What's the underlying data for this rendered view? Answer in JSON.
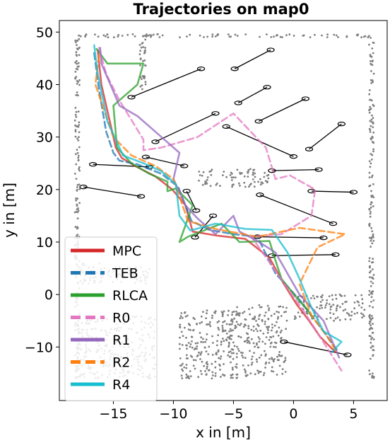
{
  "chart_data": {
    "type": "line",
    "title": "Trajectories on map0",
    "xlabel": "x in [m]",
    "ylabel": "y in [m]",
    "xlim": [
      -19.5,
      7.8
    ],
    "ylim": [
      -20.2,
      52.2
    ],
    "xticks": [
      -15,
      -10,
      -5,
      0,
      5
    ],
    "yticks": [
      -10,
      0,
      10,
      20,
      30,
      40,
      50
    ],
    "xtick_labels": [
      "−15",
      "−10",
      "−5",
      "0",
      "5"
    ],
    "ytick_labels": [
      "−10",
      "0",
      "10",
      "20",
      "30",
      "40",
      "50"
    ],
    "grid": false,
    "legend_position": "lower-left",
    "series": [
      {
        "name": "MPC",
        "color": "#d62728",
        "dash": "solid",
        "x": [
          -16.3,
          -16.0,
          -15.2,
          -14.8,
          -14.3,
          -13.2,
          -11.5,
          -10.1,
          -9.0,
          -8.4,
          -6.3,
          -4.0,
          -2.0,
          -0.8,
          0.3,
          1.3,
          2.2,
          3.5
        ],
        "y": [
          46.5,
          40.0,
          32.0,
          28.0,
          26.0,
          24.5,
          22.5,
          20.0,
          17.0,
          12.0,
          11.2,
          10.6,
          7.0,
          2.0,
          -2.0,
          -5.0,
          -8.0,
          -11.0
        ]
      },
      {
        "name": "TEB",
        "color": "#1f77b4",
        "dash": "dashed",
        "x": [
          -16.6,
          -16.2,
          -15.6,
          -15.0,
          -14.5,
          -13.0,
          -11.0,
          -9.6,
          -8.5,
          -7.0,
          -5.0,
          -3.0,
          -1.5,
          0.5,
          1.5,
          2.5,
          3.6
        ],
        "y": [
          46.0,
          39.0,
          31.0,
          27.0,
          25.5,
          24.8,
          23.0,
          20.5,
          14.0,
          12.3,
          11.5,
          11.0,
          4.0,
          -1.0,
          -4.0,
          -7.0,
          -10.5
        ]
      },
      {
        "name": "RLCA",
        "color": "#2ca02c",
        "dash": "solid",
        "x": [
          -16.4,
          -15.5,
          -12.5,
          -13.0,
          -15.0,
          -14.7,
          -13.5,
          -12.0,
          -10.5,
          -10.5,
          -9.8,
          -8.4,
          -9.5,
          -8.8,
          -6.0,
          -4.5,
          -2.0,
          -1.5,
          -1.0,
          0.4,
          1.2,
          1.6
        ],
        "y": [
          46.8,
          44.0,
          44.0,
          40.0,
          36.0,
          28.0,
          25.0,
          23.0,
          21.5,
          19.7,
          20.2,
          17.0,
          10.0,
          11.0,
          13.5,
          10.0,
          10.2,
          6.5,
          3.0,
          -1.0,
          -3.0,
          -4.5
        ]
      },
      {
        "name": "R0",
        "color": "#e377c2",
        "dash": "dashed",
        "x": [
          -16.2,
          -15.6,
          -14.5,
          -12.5,
          -12.5,
          -11.0,
          -8.0,
          -5.0,
          -2.3,
          -1.5,
          -0.3,
          1.8,
          1.5,
          -1.0,
          -3.5,
          0.8,
          4.0
        ],
        "y": [
          47.0,
          42.0,
          37.0,
          29.5,
          27.5,
          28.0,
          30.0,
          34.5,
          28.0,
          22.0,
          22.7,
          20.0,
          15.0,
          11.5,
          11.0,
          -3.0,
          -14.5
        ]
      },
      {
        "name": "R1",
        "color": "#9467bd",
        "dash": "solid",
        "x": [
          -16.1,
          -16.0,
          -14.5,
          -13.0,
          -11.5,
          -9.5,
          -10.0,
          -9.0,
          -8.0,
          -6.5,
          -5.0,
          -4.5,
          -3.0,
          -1.5,
          0.5,
          2.5,
          3.8
        ],
        "y": [
          47.0,
          44.0,
          36.0,
          34.0,
          31.0,
          27.0,
          22.0,
          17.0,
          14.5,
          11.5,
          15.0,
          12.0,
          10.2,
          8.0,
          0.0,
          -5.0,
          -12.0
        ]
      },
      {
        "name": "R2",
        "color": "#ff7f0e",
        "dash": "dashed",
        "x": [
          -16.2,
          -16.5,
          -15.0,
          -13.5,
          -11.5,
          -10.0,
          -8.8,
          -6.5,
          -3.0,
          0.5,
          4.3,
          2.0,
          0.5,
          1.5,
          2.8,
          3.6
        ],
        "y": [
          45.5,
          40.0,
          30.0,
          26.5,
          24.5,
          22.0,
          14.0,
          12.5,
          11.0,
          12.7,
          11.5,
          9.0,
          2.0,
          -4.0,
          -8.0,
          -11.0
        ]
      },
      {
        "name": "R4",
        "color": "#17becf",
        "dash": "solid",
        "x": [
          -16.6,
          -16.3,
          -15.5,
          -14.2,
          -12.5,
          -11.0,
          -9.8,
          -9.5,
          -8.6,
          -6.5,
          -4.0,
          -1.8,
          -0.5,
          0.5,
          1.5,
          2.5,
          4.0,
          3.2
        ],
        "y": [
          47.5,
          42.0,
          33.0,
          26.5,
          25.0,
          23.5,
          21.0,
          15.0,
          12.2,
          13.5,
          12.5,
          12.3,
          8.0,
          3.0,
          -2.5,
          -7.0,
          -9.0,
          -11.0
        ]
      }
    ],
    "obstacle_links": [
      {
        "x": [
          -13.5,
          -7.7
        ],
        "y": [
          37.6,
          43.0
        ]
      },
      {
        "x": [
          -4.9,
          -1.9
        ],
        "y": [
          43.0,
          46.6
        ]
      },
      {
        "x": [
          -4.6,
          -2.2
        ],
        "y": [
          36.5,
          39.5
        ]
      },
      {
        "x": [
          -11.5,
          -6.5
        ],
        "y": [
          29.1,
          34.5
        ]
      },
      {
        "x": [
          -2.9,
          1.0
        ],
        "y": [
          33.0,
          37.3
        ]
      },
      {
        "x": [
          -5.6,
          0.0
        ],
        "y": [
          32.0,
          26.3
        ]
      },
      {
        "x": [
          1.3,
          4.0
        ],
        "y": [
          27.7,
          32.5
        ]
      },
      {
        "x": [
          -16.7,
          -12.0
        ],
        "y": [
          24.8,
          24.3
        ]
      },
      {
        "x": [
          -12.3,
          -9.1
        ],
        "y": [
          26.2,
          24.5
        ]
      },
      {
        "x": [
          -1.8,
          2.1
        ],
        "y": [
          23.6,
          23.8
        ]
      },
      {
        "x": [
          -17.5,
          -12.7
        ],
        "y": [
          20.5,
          18.7
        ]
      },
      {
        "x": [
          1.5,
          5.0
        ],
        "y": [
          19.7,
          19.5
        ]
      },
      {
        "x": [
          -2.8,
          3.3
        ],
        "y": [
          19.0,
          13.5
        ]
      },
      {
        "x": [
          -8.9,
          -8.1
        ],
        "y": [
          19.7,
          16.0
        ]
      },
      {
        "x": [
          -6.7,
          -8.2
        ],
        "y": [
          15.0,
          10.9
        ]
      },
      {
        "x": [
          -3.0,
          2.5
        ],
        "y": [
          11.0,
          10.8
        ]
      },
      {
        "x": [
          -1.8,
          3.5
        ],
        "y": [
          7.4,
          7.6
        ]
      },
      {
        "x": [
          -0.8,
          4.5
        ],
        "y": [
          -9.0,
          -11.5
        ]
      }
    ]
  }
}
